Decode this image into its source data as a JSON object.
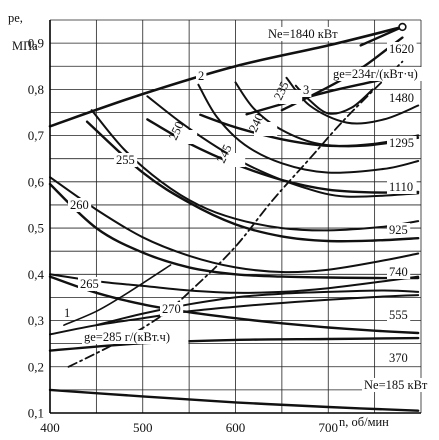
{
  "chart_data": {
    "type": "line",
    "xlabel": "n, об/мин",
    "ylabel_line1": "pe,",
    "ylabel_line2": "МПа",
    "xlim": [
      400,
      800
    ],
    "ylim": [
      0.1,
      0.95
    ],
    "grid": true,
    "x_ticks": [
      400,
      500,
      600,
      700
    ],
    "y_ticks": [
      0.1,
      0.2,
      0.3,
      0.4,
      0.5,
      0.6,
      0.7,
      0.8,
      0.9
    ],
    "x_tick_labels": [
      "400",
      "500",
      "600",
      "700"
    ],
    "y_tick_labels": [
      "0,1",
      "0,2",
      "0,3",
      "0,4",
      "0,5",
      "0,6",
      "0,7",
      "0,8",
      "0,9"
    ],
    "power_curves": [
      {
        "label": "Ne=1840 кВт",
        "x": [
          735,
          780
        ],
        "y": [
          0.895,
          0.935
        ]
      },
      {
        "label": "1620",
        "x": [
          650,
          700,
          735,
          762,
          780
        ],
        "y": [
          0.755,
          0.805,
          0.845,
          0.885,
          0.912
        ]
      },
      {
        "label": "1480",
        "x": [
          612,
          650,
          700,
          740,
          775,
          797
        ],
        "y": [
          0.746,
          0.768,
          0.795,
          0.813,
          0.828,
          0.838
        ]
      },
      {
        "label": "1295",
        "x": [
          562,
          600,
          650,
          700,
          750,
          797
        ],
        "y": [
          0.745,
          0.718,
          0.692,
          0.678,
          0.682,
          0.7
        ]
      },
      {
        "label": "1110",
        "x": [
          505,
          550,
          600,
          650,
          700,
          750,
          797
        ],
        "y": [
          0.735,
          0.683,
          0.638,
          0.604,
          0.583,
          0.577,
          0.578
        ]
      },
      {
        "label": "925",
        "x": [
          440,
          500,
          550,
          600,
          650,
          700,
          750,
          797
        ],
        "y": [
          0.73,
          0.62,
          0.555,
          0.508,
          0.482,
          0.472,
          0.473,
          0.478
        ]
      },
      {
        "label": "740",
        "x": [
          400,
          450,
          500,
          550,
          600,
          650,
          700,
          750,
          797
        ],
        "y": [
          0.595,
          0.5,
          0.447,
          0.415,
          0.4,
          0.395,
          0.393,
          0.392,
          0.392
        ]
      },
      {
        "label": "555",
        "x": [
          400,
          450,
          500,
          550,
          600,
          650,
          700,
          750,
          797
        ],
        "y": [
          0.395,
          0.36,
          0.335,
          0.318,
          0.305,
          0.294,
          0.285,
          0.278,
          0.273
        ]
      },
      {
        "label": "370",
        "x": [
          400,
          500,
          600,
          700,
          797
        ],
        "y": [
          0.235,
          0.251,
          0.258,
          0.26,
          0.262
        ]
      },
      {
        "label": "Ne=185 кВт",
        "x": [
          400,
          500,
          600,
          700,
          797
        ],
        "y": [
          0.15,
          0.136,
          0.123,
          0.113,
          0.105
        ]
      }
    ],
    "fuel_consumption_curves": [
      {
        "label": "ge=234г/(кВт·ч)",
        "x": [
          665,
          678,
          700,
          725,
          748
        ],
        "y": [
          0.808,
          0.78,
          0.748,
          0.76,
          0.8
        ]
      },
      {
        "label": "235",
        "x": [
          655,
          680,
          720,
          760,
          797
        ],
        "y": [
          0.825,
          0.765,
          0.728,
          0.735,
          0.765
        ]
      },
      {
        "label": "240",
        "x": [
          600,
          620,
          650,
          690,
          740,
          797
        ],
        "y": [
          0.815,
          0.758,
          0.712,
          0.682,
          0.678,
          0.695
        ]
      },
      {
        "label": "245",
        "x": [
          560,
          580,
          610,
          650,
          700,
          760,
          797
        ],
        "y": [
          0.81,
          0.74,
          0.68,
          0.64,
          0.62,
          0.628,
          0.645
        ]
      },
      {
        "label": "250",
        "x": [
          505,
          540,
          580,
          620,
          670,
          720,
          797
        ],
        "y": [
          0.785,
          0.73,
          0.675,
          0.63,
          0.59,
          0.568,
          0.575
        ]
      },
      {
        "label": "255",
        "x": [
          445,
          480,
          520,
          560,
          600,
          650,
          700,
          760,
          797
        ],
        "y": [
          0.755,
          0.67,
          0.6,
          0.55,
          0.52,
          0.5,
          0.495,
          0.503,
          0.515
        ]
      },
      {
        "label": "260",
        "x": [
          400,
          450,
          500,
          550,
          600,
          650,
          700,
          760,
          797
        ],
        "y": [
          0.61,
          0.54,
          0.48,
          0.44,
          0.415,
          0.405,
          0.41,
          0.43,
          0.445
        ]
      },
      {
        "label": "265",
        "x": [
          400,
          450,
          500,
          550,
          600,
          650,
          700,
          760,
          797
        ],
        "y": [
          0.4,
          0.385,
          0.375,
          0.365,
          0.36,
          0.362,
          0.37,
          0.385,
          0.395
        ]
      },
      {
        "label": "270",
        "x": [
          450,
          500,
          550,
          600,
          650,
          700,
          760,
          797
        ],
        "y": [
          0.29,
          0.315,
          0.335,
          0.35,
          0.358,
          0.362,
          0.365,
          0.362
        ]
      },
      {
        "label": "gе=285 г/(кВт.ч)",
        "x": [
          400,
          450,
          500,
          550,
          600,
          650,
          700,
          760,
          797
        ],
        "y": [
          0.27,
          0.29,
          0.305,
          0.32,
          0.33,
          0.338,
          0.345,
          0.352,
          0.355
        ]
      }
    ],
    "limit_line": {
      "label": "2",
      "x": [
        400,
        500,
        600,
        700,
        780
      ],
      "y": [
        0.72,
        0.79,
        0.85,
        0.895,
        0.935
      ]
    },
    "dashdot_line": {
      "label": "3",
      "x": [
        420,
        470,
        520,
        560,
        600,
        640,
        680,
        720,
        780
      ],
      "y": [
        0.2,
        0.25,
        0.31,
        0.38,
        0.46,
        0.56,
        0.65,
        0.74,
        0.86
      ]
    },
    "short_curve": {
      "label": "1",
      "x": [
        415,
        450,
        480,
        530
      ],
      "y": [
        0.29,
        0.32,
        0.355,
        0.42
      ]
    },
    "annotations": {
      "label_1": "1",
      "label_2": "2",
      "label_3": "3"
    }
  }
}
